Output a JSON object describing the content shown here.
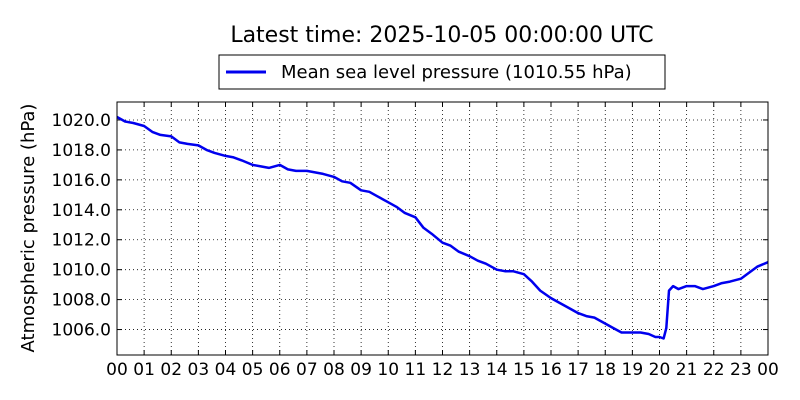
{
  "chart_data": {
    "type": "line",
    "title": "Latest time: 2025-10-05 00:00:00 UTC",
    "xlabel": "",
    "ylabel": "Atmospheric pressure (hPa)",
    "xlim": [
      0,
      24
    ],
    "ylim": [
      1004.3,
      1021.2
    ],
    "x_ticks": [
      "00",
      "01",
      "02",
      "03",
      "04",
      "05",
      "06",
      "07",
      "08",
      "09",
      "10",
      "11",
      "12",
      "13",
      "14",
      "15",
      "16",
      "17",
      "18",
      "19",
      "20",
      "21",
      "22",
      "23",
      "00"
    ],
    "y_ticks": [
      1006,
      1008,
      1010,
      1012,
      1014,
      1016,
      1018,
      1020
    ],
    "y_tick_labels": [
      "1006.0",
      "1008.0",
      "1010.0",
      "1012.0",
      "1014.0",
      "1016.0",
      "1018.0",
      "1020.0"
    ],
    "grid": true,
    "legend_position": "top-center",
    "series": [
      {
        "name": "Mean sea level pressure (1010.55 hPa)",
        "color": "#0000ee",
        "x": [
          0,
          0.3,
          0.6,
          1.0,
          1.3,
          1.6,
          2.0,
          2.3,
          2.6,
          3.0,
          3.3,
          3.6,
          4.0,
          4.3,
          4.6,
          5.0,
          5.3,
          5.6,
          6.0,
          6.3,
          6.6,
          7.0,
          7.3,
          7.6,
          8.0,
          8.3,
          8.6,
          9.0,
          9.3,
          9.6,
          10.0,
          10.3,
          10.6,
          11.0,
          11.3,
          11.6,
          12.0,
          12.3,
          12.6,
          13.0,
          13.3,
          13.6,
          14.0,
          14.3,
          14.6,
          15.0,
          15.3,
          15.6,
          16.0,
          16.3,
          16.6,
          17.0,
          17.3,
          17.6,
          18.0,
          18.3,
          18.6,
          19.0,
          19.3,
          19.6,
          19.85,
          20.0,
          20.15,
          20.25,
          20.35,
          20.5,
          20.7,
          21.0,
          21.3,
          21.6,
          22.0,
          22.3,
          22.6,
          23.0,
          23.3,
          23.6,
          24.0
        ],
        "values": [
          1020.2,
          1019.9,
          1019.8,
          1019.6,
          1019.2,
          1019.0,
          1018.9,
          1018.5,
          1018.4,
          1018.3,
          1018.0,
          1017.8,
          1017.6,
          1017.5,
          1017.3,
          1017.0,
          1016.9,
          1016.8,
          1017.0,
          1016.7,
          1016.6,
          1016.6,
          1016.5,
          1016.4,
          1016.2,
          1015.9,
          1015.8,
          1015.3,
          1015.2,
          1014.9,
          1014.5,
          1014.2,
          1013.8,
          1013.5,
          1012.8,
          1012.4,
          1011.8,
          1011.6,
          1011.2,
          1010.9,
          1010.6,
          1010.4,
          1010.0,
          1009.9,
          1009.9,
          1009.7,
          1009.2,
          1008.6,
          1008.1,
          1007.8,
          1007.5,
          1007.1,
          1006.9,
          1006.8,
          1006.4,
          1006.1,
          1005.8,
          1005.8,
          1005.8,
          1005.7,
          1005.5,
          1005.5,
          1005.4,
          1006.1,
          1008.6,
          1008.9,
          1008.7,
          1008.9,
          1008.9,
          1008.7,
          1008.9,
          1009.1,
          1009.2,
          1009.4,
          1009.8,
          1010.2,
          1010.5
        ]
      }
    ]
  }
}
